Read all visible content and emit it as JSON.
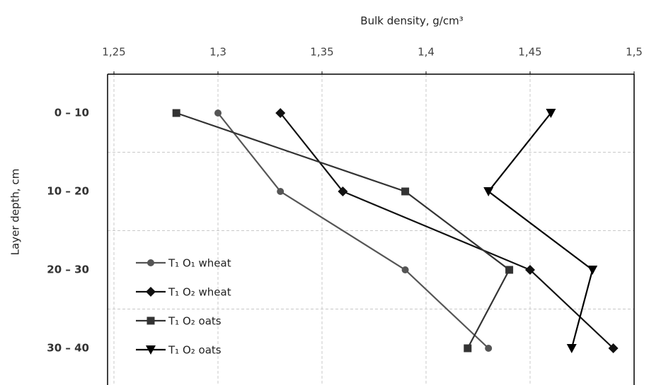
{
  "chart_data": {
    "type": "line",
    "title": "Bulk density, g/cm³",
    "ylabel": "Layer depth, cm",
    "categories": [
      "0 – 10",
      "10 – 20",
      "20 – 30",
      "30 – 40"
    ],
    "xlim": [
      1.25,
      1.5
    ],
    "xticks": [
      {
        "value": 1.25,
        "label": "1,25"
      },
      {
        "value": 1.3,
        "label": "1,3"
      },
      {
        "value": 1.35,
        "label": "1,35"
      },
      {
        "value": 1.4,
        "label": "1,4"
      },
      {
        "value": 1.45,
        "label": "1,45"
      },
      {
        "value": 1.5,
        "label": "1,5"
      }
    ],
    "grid": true,
    "legend": "lower left",
    "series": [
      {
        "name": "T₁ O₁ wheat",
        "color": "#555555",
        "marker": "circle",
        "values": [
          1.3,
          1.33,
          1.39,
          1.43
        ]
      },
      {
        "name": "T₁ O₂ wheat",
        "color": "#111111",
        "marker": "diamond",
        "values": [
          1.33,
          1.36,
          1.45,
          1.49
        ]
      },
      {
        "name": "T₁ O₂ oats",
        "color": "#333333",
        "marker": "square",
        "values": [
          1.28,
          1.39,
          1.44,
          1.42
        ]
      },
      {
        "name": "T₁ O₂ oats",
        "color": "#000000",
        "marker": "triangle",
        "values": [
          1.46,
          1.43,
          1.48,
          1.47
        ]
      }
    ]
  }
}
